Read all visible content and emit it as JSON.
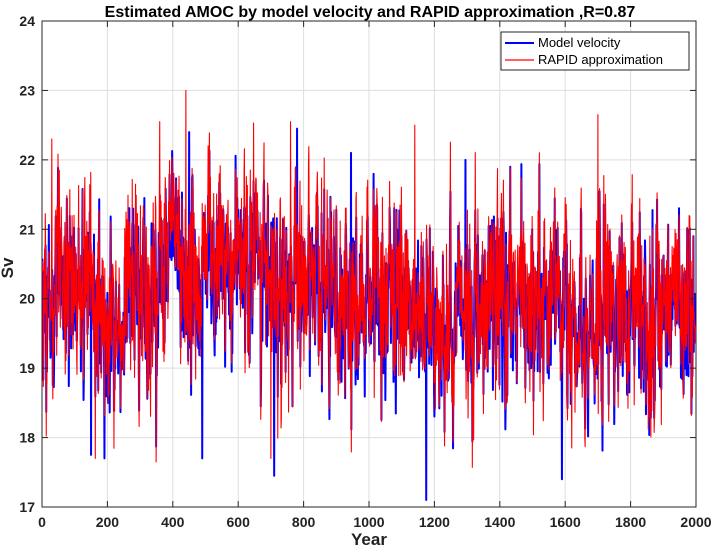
{
  "chart_data": {
    "type": "line",
    "title": "Estimated AMOC by model velocity and RAPID approximation ,R=0.87",
    "xlabel": "Year",
    "ylabel": "Sv",
    "xlim": [
      0,
      2000
    ],
    "ylim": [
      17,
      24
    ],
    "xticks": [
      0,
      200,
      400,
      600,
      800,
      1000,
      1200,
      1400,
      1600,
      1800,
      2000
    ],
    "yticks": [
      17,
      18,
      19,
      20,
      21,
      22,
      23,
      24
    ],
    "grid": true,
    "legend_position": "top-right",
    "series": [
      {
        "name": "Model velocity",
        "color": "#0000ff",
        "sampling": "one value per year, years 1-2000",
        "mean": 20.0,
        "std": 0.75,
        "min": 17.1,
        "max": 22.45,
        "notable_points": [
          {
            "x": 150,
            "y": 17.75
          },
          {
            "x": 450,
            "y": 22.4
          },
          {
            "x": 490,
            "y": 17.7
          },
          {
            "x": 710,
            "y": 17.45
          },
          {
            "x": 780,
            "y": 22.45
          },
          {
            "x": 945,
            "y": 22.1
          },
          {
            "x": 1175,
            "y": 17.1
          },
          {
            "x": 1295,
            "y": 22.0
          },
          {
            "x": 1590,
            "y": 17.4
          }
        ]
      },
      {
        "name": "RAPID approximation",
        "color": "#ff0000",
        "sampling": "one value per year, years 1-2000",
        "mean": 20.1,
        "std": 0.8,
        "min": 17.55,
        "max": 23.0,
        "notable_points": [
          {
            "x": 30,
            "y": 22.3
          },
          {
            "x": 360,
            "y": 22.55
          },
          {
            "x": 440,
            "y": 23.0
          },
          {
            "x": 700,
            "y": 17.7
          },
          {
            "x": 760,
            "y": 22.55
          },
          {
            "x": 1140,
            "y": 22.5
          },
          {
            "x": 1700,
            "y": 22.65
          },
          {
            "x": 1620,
            "y": 17.85
          }
        ]
      }
    ],
    "correlation_R": 0.87
  }
}
